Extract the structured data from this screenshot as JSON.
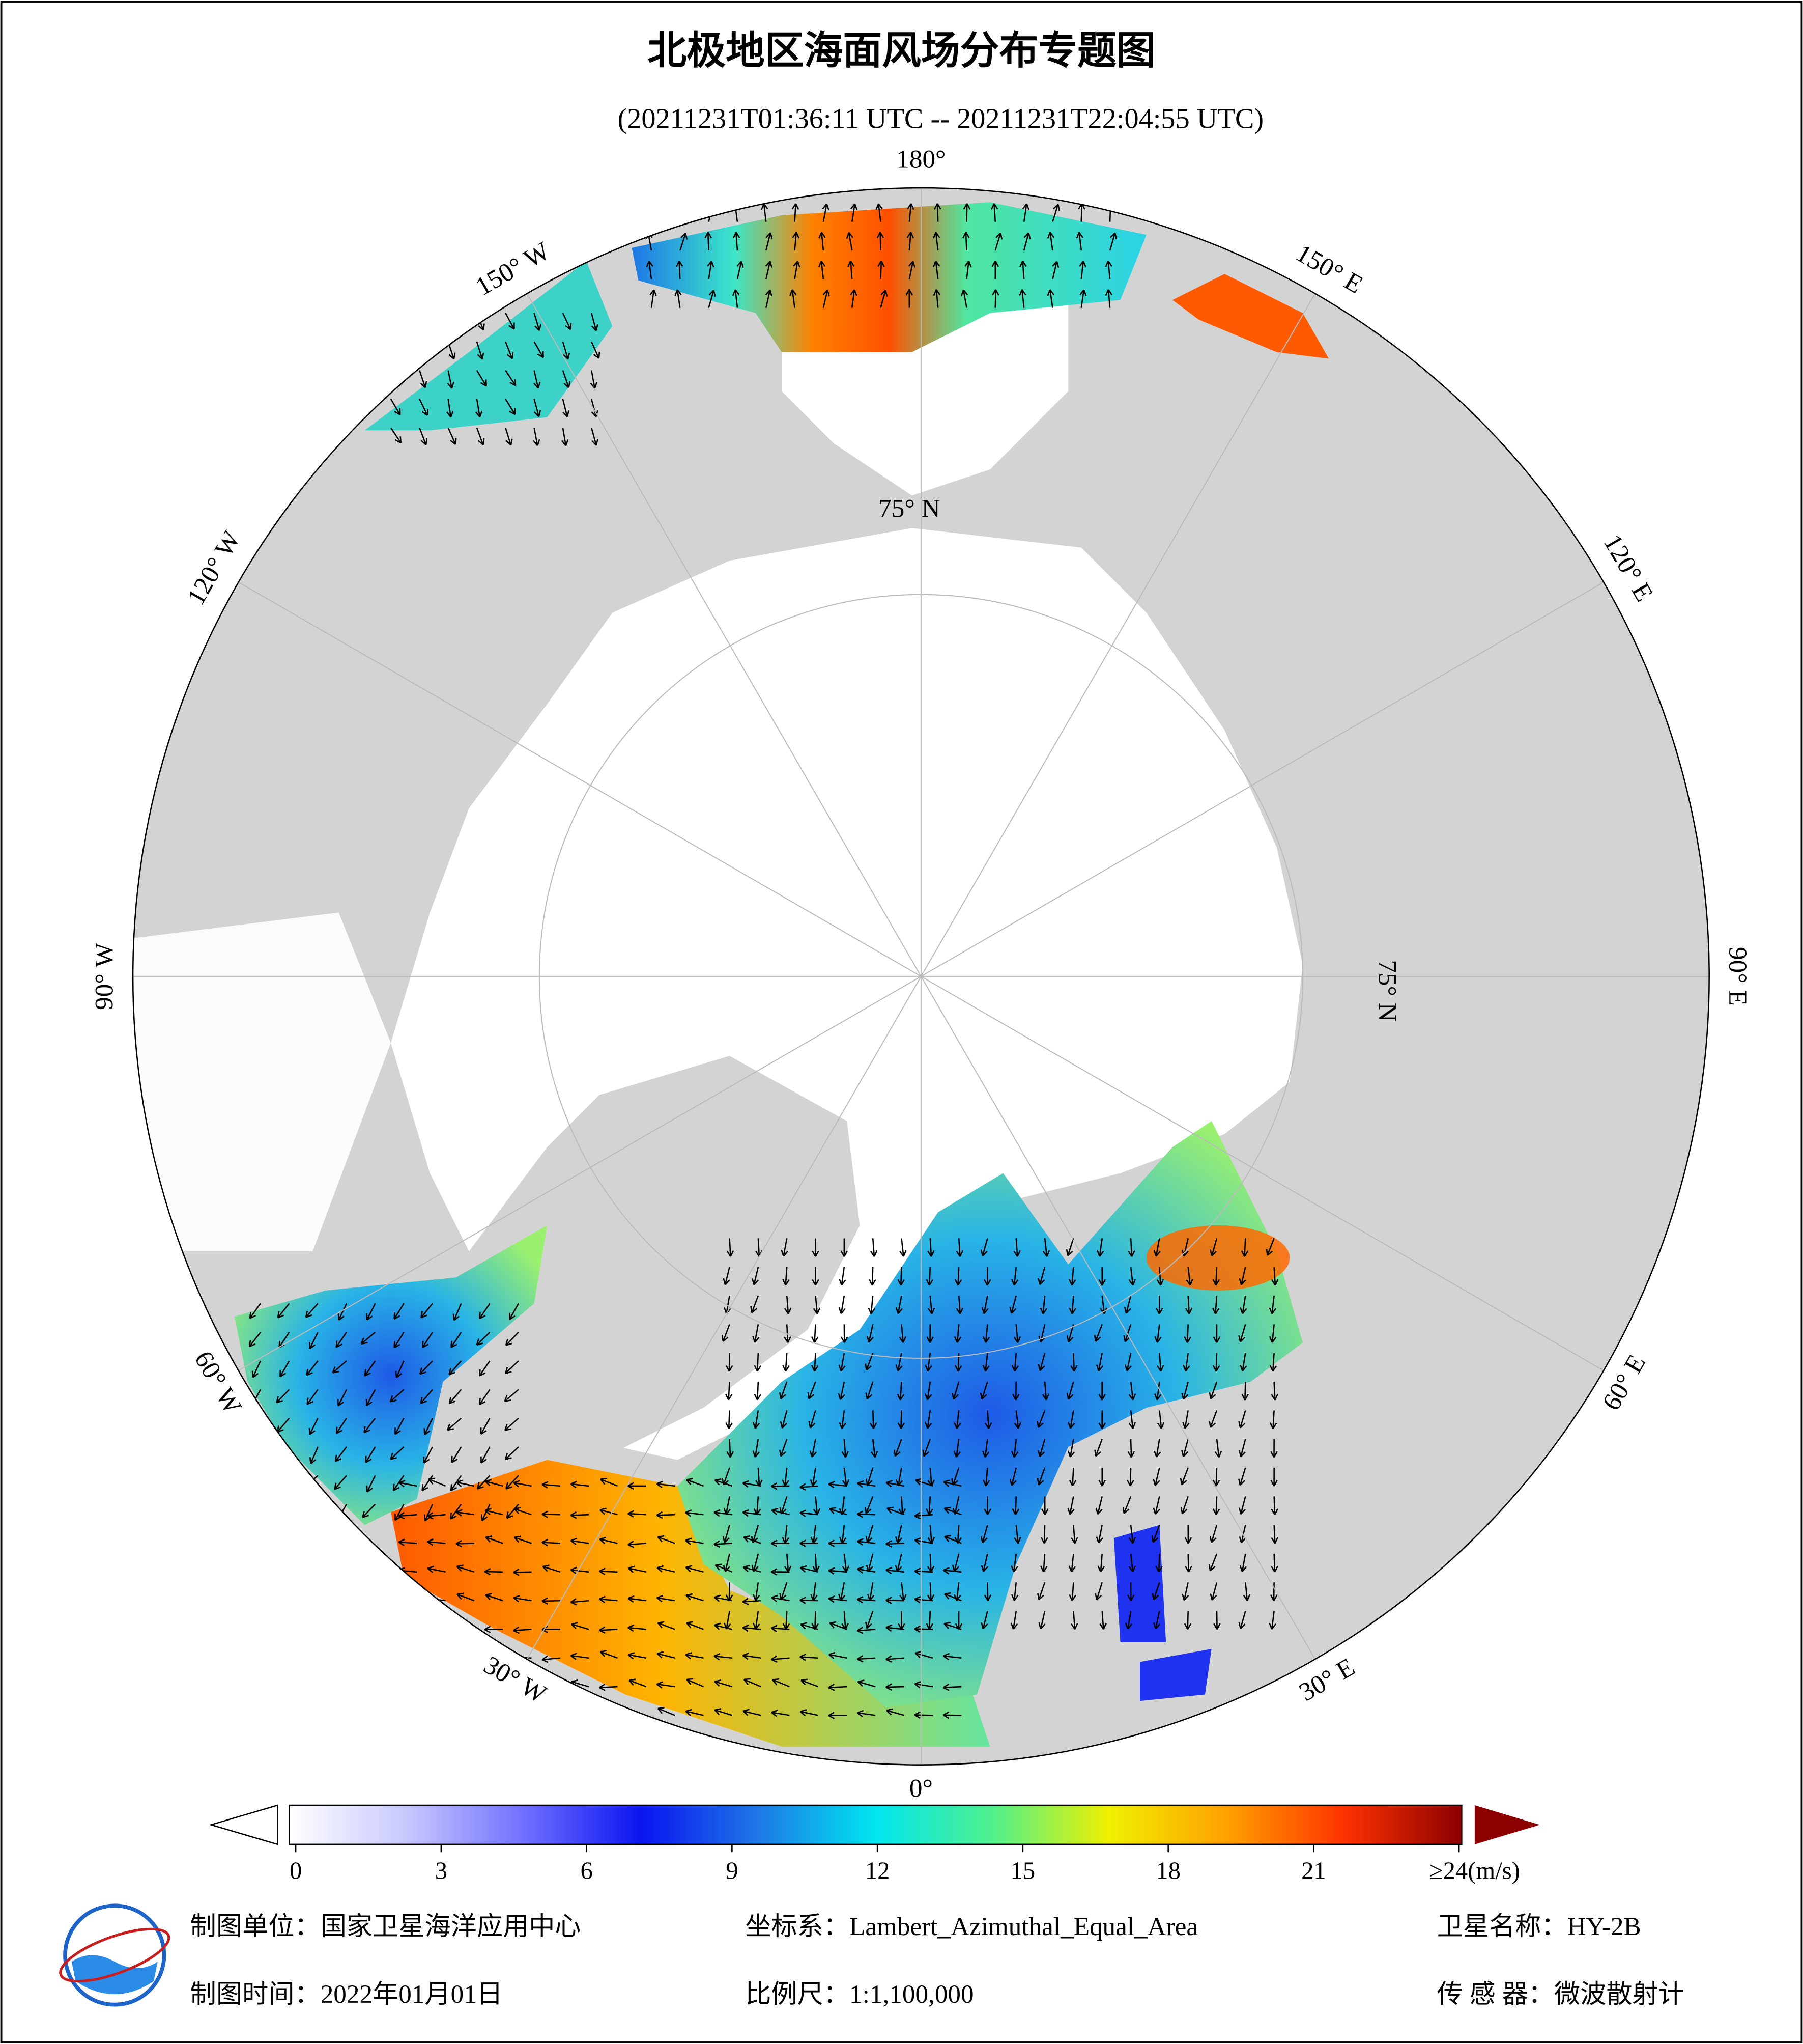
{
  "header": {
    "title": "北极地区海面风场分布专题图",
    "subtitle": "(20211231T01:36:11 UTC -- 20211231T22:04:55 UTC)"
  },
  "map": {
    "longitude_labels": [
      "180°",
      "150° E",
      "120° E",
      "90° E",
      "60° E",
      "30° E",
      "0°",
      "30° W",
      "60° W",
      "90° W",
      "120° W",
      "150° W"
    ],
    "latitude_labels": [
      "75° N",
      "75° N"
    ]
  },
  "colorbar": {
    "ticks": [
      0,
      3,
      6,
      9,
      12,
      15,
      18,
      21,
      {
        "value": 24,
        "label": "≥24(m/s)"
      }
    ],
    "colors": [
      "#ffffff",
      "#c8c8ff",
      "#7070ff",
      "#0a14f0",
      "#1e78e6",
      "#00e6f0",
      "#50f08c",
      "#f0f000",
      "#ffa000",
      "#ff3200",
      "#8c0000"
    ]
  },
  "footer": {
    "unit": "制图单位：国家卫星海洋应用中心",
    "projection": "坐标系：Lambert_Azimuthal_Equal_Area",
    "satellite": "卫星名称：HY-2B",
    "date": "制图时间：2022年01月01日",
    "scale": "比例尺：1:1,100,000",
    "sensor": "传 感 器：微波散射计"
  }
}
